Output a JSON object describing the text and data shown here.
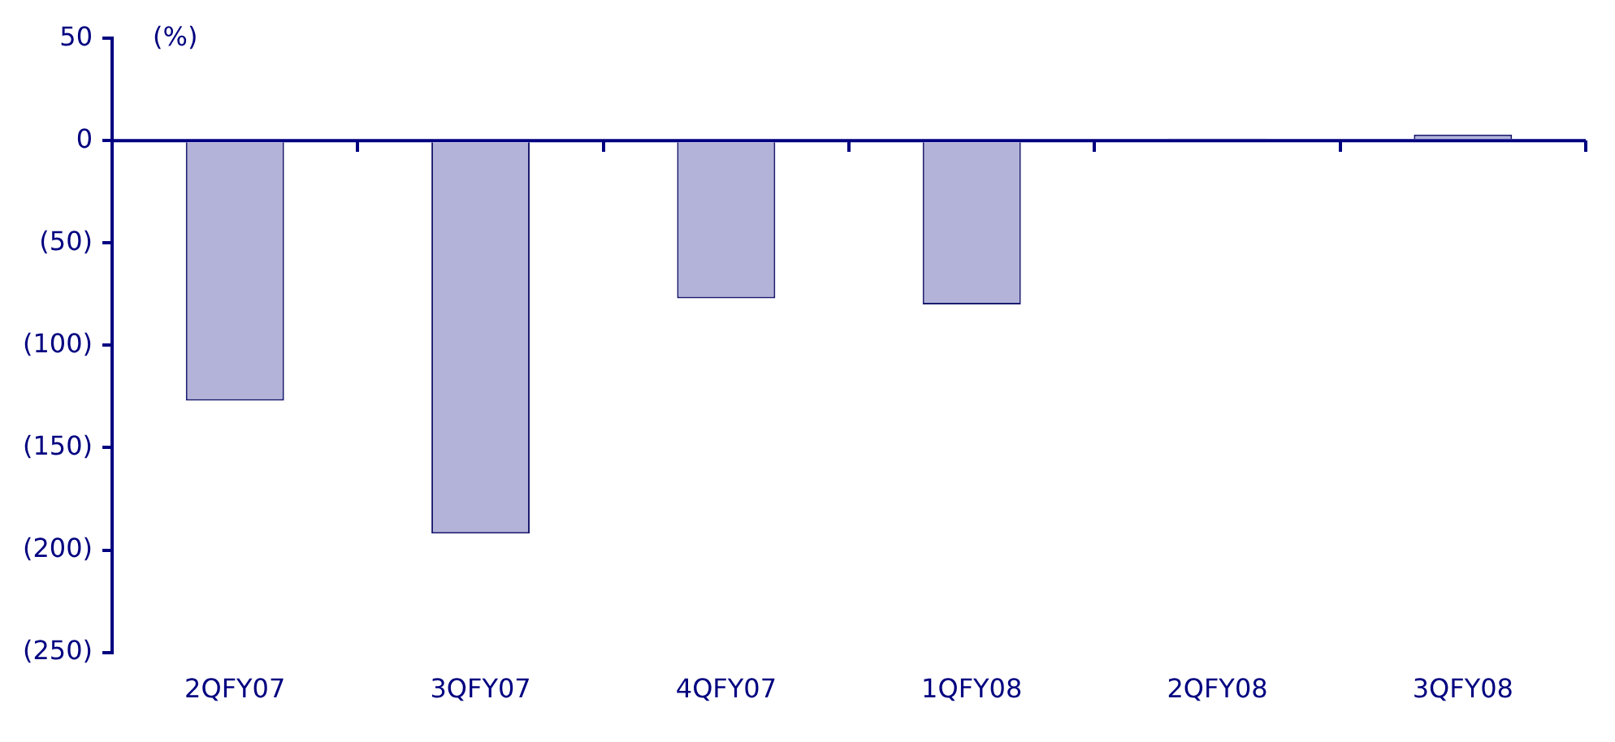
{
  "chart_data": {
    "type": "bar",
    "ylabel": "(%)",
    "categories": [
      "2QFY07",
      "3QFY07",
      "4QFY07",
      "1QFY08",
      "2QFY08",
      "3QFY08"
    ],
    "series": [
      {
        "color": "#b3b3d9",
        "values": [
          -127,
          -192,
          -77,
          -80,
          1,
          3
        ]
      }
    ],
    "ylim": [
      -250,
      50
    ],
    "yticks": [
      50,
      0,
      {
        "value": -50,
        "label": "(50)"
      },
      {
        "value": -100,
        "label": "(100)"
      },
      {
        "value": -150,
        "label": "(150)"
      },
      {
        "value": -200,
        "label": "(200)"
      },
      {
        "value": -250,
        "label": "(250)"
      }
    ],
    "ref_lines": [
      {
        "axis": "y",
        "value": 0,
        "color": "#000080"
      }
    ],
    "grid": false,
    "legend": false
  }
}
